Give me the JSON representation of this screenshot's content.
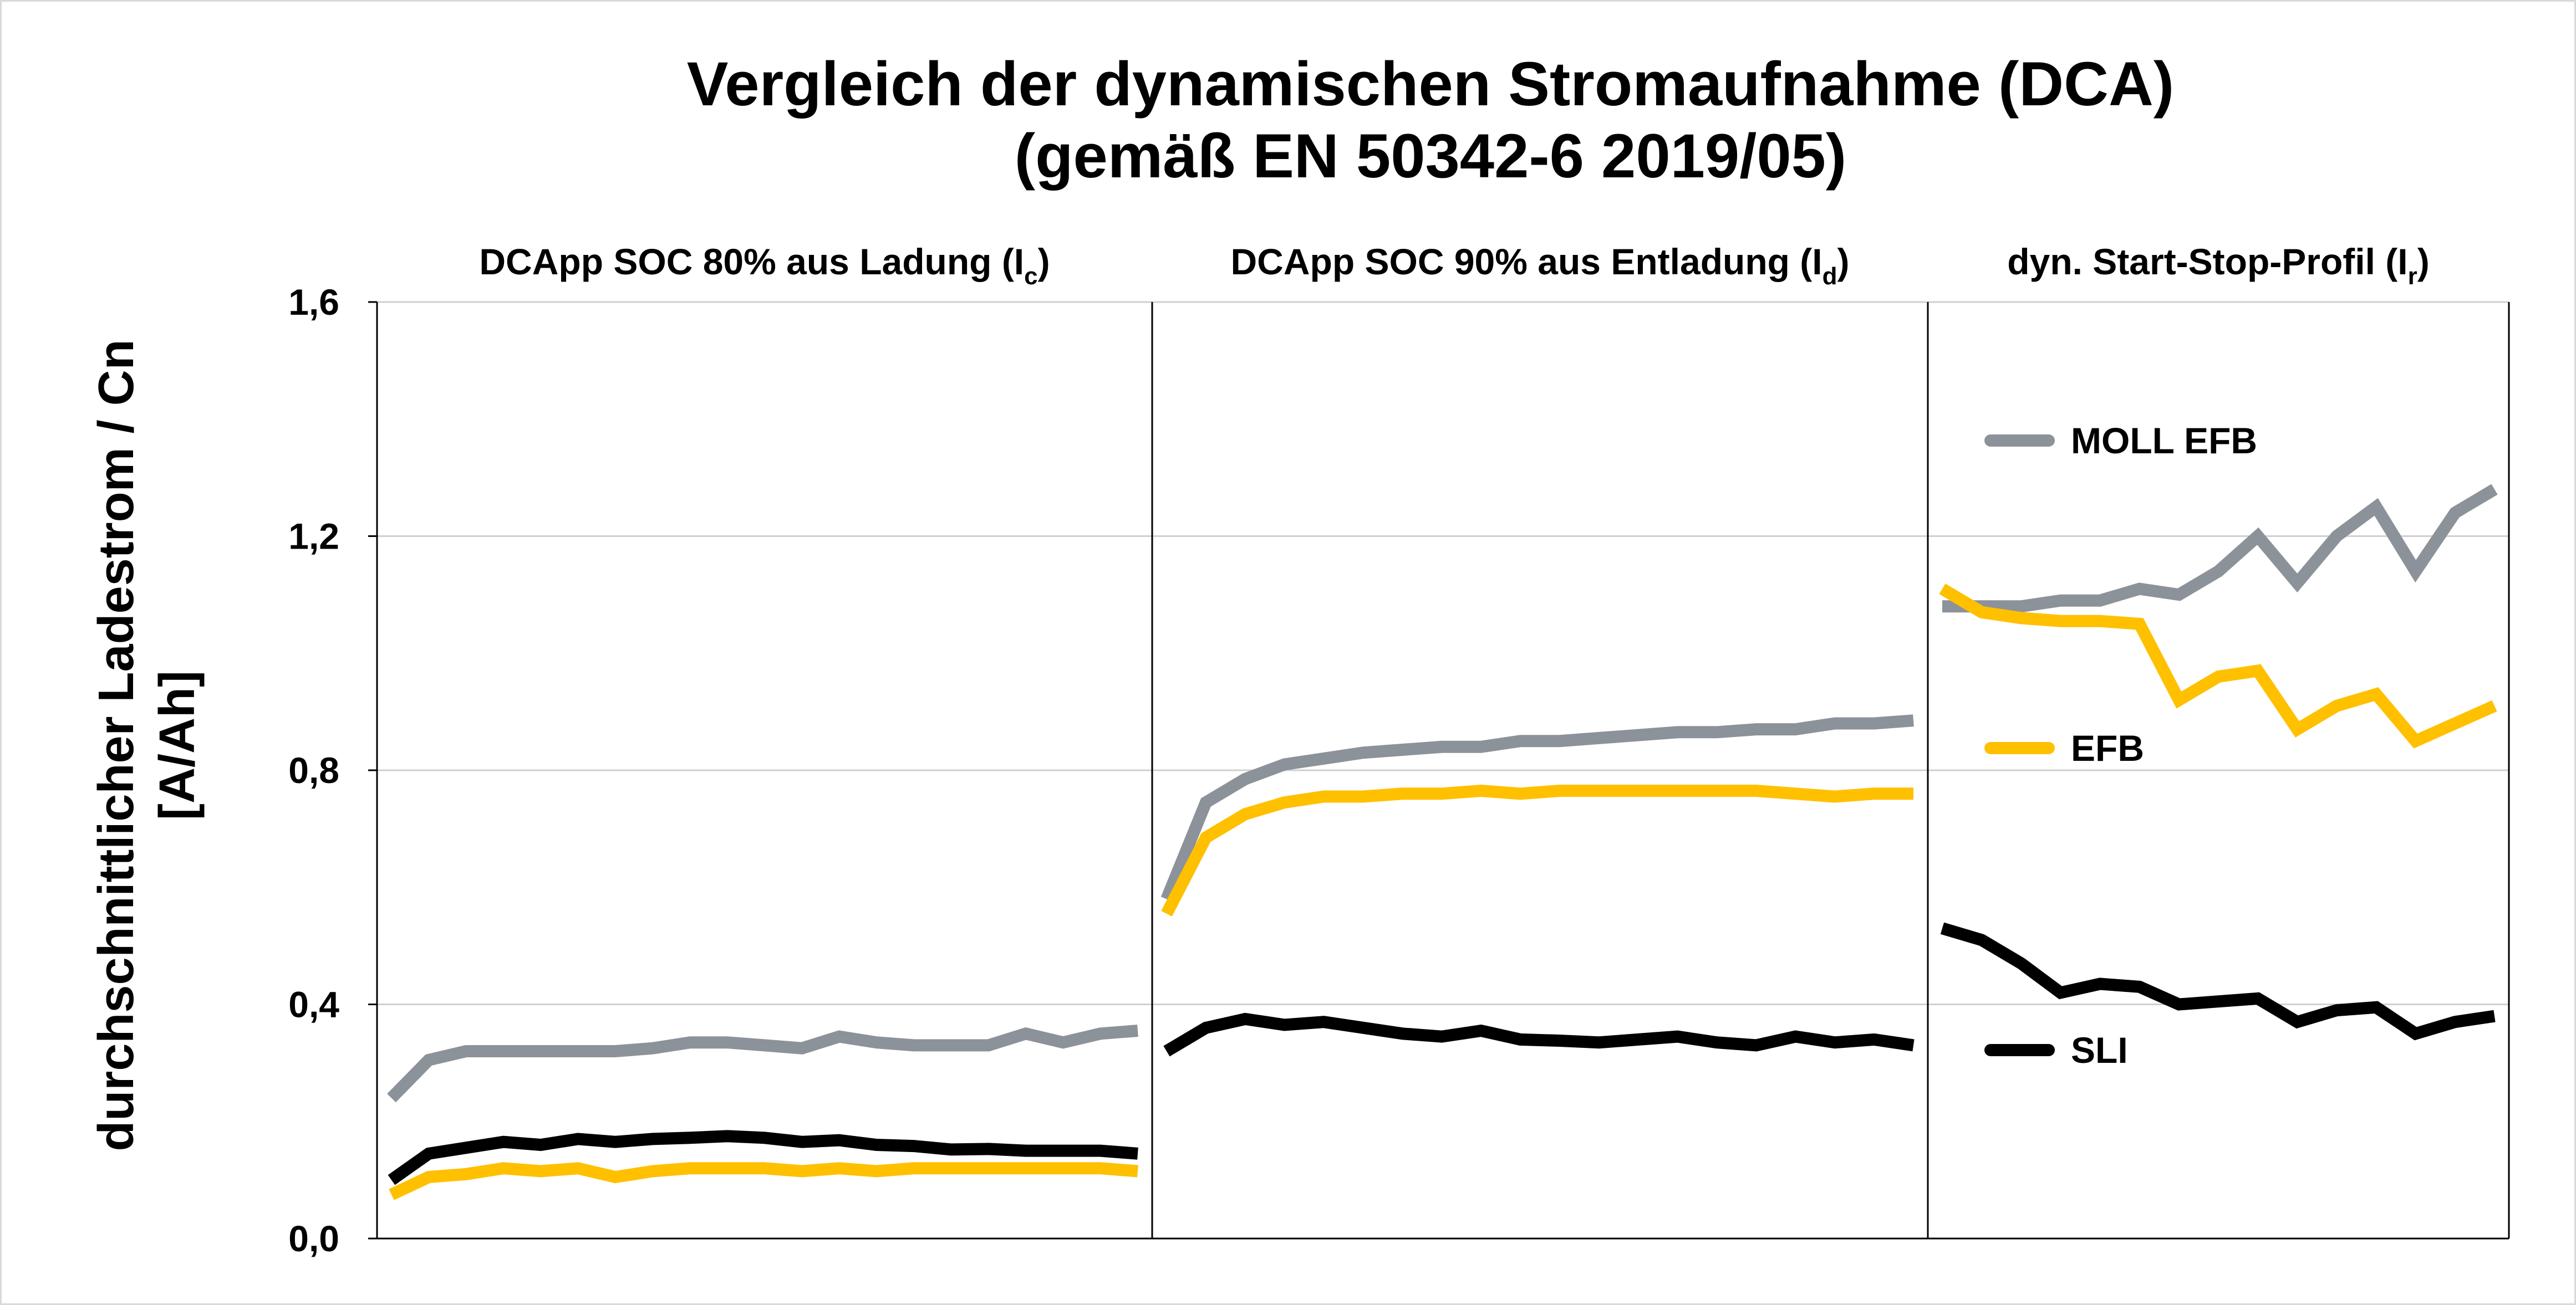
{
  "chart_data": {
    "type": "line",
    "title": [
      "Vergleich der dynamischen Stromaufnahme (DCA)",
      "(gemäß EN 50342-6 2019/05)"
    ],
    "ylabel": [
      "durchschnittlicher Ladestrom / Cn",
      "[A/Ah]"
    ],
    "ylim": [
      0,
      1.6
    ],
    "yticks": [
      "0,0",
      "0,4",
      "0,8",
      "1,2",
      "1,6"
    ],
    "ytick_values": [
      0,
      0.4,
      0.8,
      1.2,
      1.6
    ],
    "grid": true,
    "legend": [
      {
        "name": "MOLL EFB",
        "color": "#8c9299"
      },
      {
        "name": "EFB",
        "color": "#ffc000"
      },
      {
        "name": "SLI",
        "color": "#000000"
      }
    ],
    "panels": [
      {
        "title": "DCApp SOC 80% aus Ladung (I",
        "subscript": "c",
        "title_end": ")",
        "series": [
          {
            "name": "MOLL EFB",
            "values": [
              0.24,
              0.305,
              0.32,
              0.32,
              0.32,
              0.32,
              0.32,
              0.325,
              0.335,
              0.335,
              0.33,
              0.325,
              0.345,
              0.335,
              0.33,
              0.33,
              0.33,
              0.35,
              0.335,
              0.35,
              0.355
            ]
          },
          {
            "name": "EFB",
            "values": [
              0.075,
              0.105,
              0.11,
              0.12,
              0.115,
              0.12,
              0.105,
              0.115,
              0.12,
              0.12,
              0.12,
              0.115,
              0.12,
              0.115,
              0.12,
              0.12,
              0.12,
              0.12,
              0.12,
              0.12,
              0.115
            ]
          },
          {
            "name": "SLI",
            "values": [
              0.1,
              0.145,
              0.155,
              0.165,
              0.16,
              0.17,
              0.165,
              0.17,
              0.172,
              0.175,
              0.172,
              0.165,
              0.168,
              0.16,
              0.158,
              0.152,
              0.153,
              0.15,
              0.15,
              0.15,
              0.145
            ]
          }
        ]
      },
      {
        "title": "DCApp SOC 90% aus Entladung (I",
        "subscript": "d",
        "title_end": ")",
        "series": [
          {
            "name": "MOLL EFB",
            "values": [
              0.58,
              0.745,
              0.785,
              0.81,
              0.82,
              0.83,
              0.835,
              0.84,
              0.84,
              0.85,
              0.85,
              0.855,
              0.86,
              0.865,
              0.865,
              0.87,
              0.87,
              0.88,
              0.88,
              0.885
            ]
          },
          {
            "name": "EFB",
            "values": [
              0.555,
              0.685,
              0.725,
              0.745,
              0.755,
              0.755,
              0.76,
              0.76,
              0.765,
              0.76,
              0.765,
              0.765,
              0.765,
              0.765,
              0.765,
              0.765,
              0.76,
              0.755,
              0.76,
              0.76
            ]
          },
          {
            "name": "SLI",
            "values": [
              0.32,
              0.36,
              0.375,
              0.365,
              0.37,
              0.36,
              0.35,
              0.345,
              0.355,
              0.34,
              0.338,
              0.335,
              0.34,
              0.345,
              0.335,
              0.33,
              0.345,
              0.335,
              0.34,
              0.33
            ]
          }
        ]
      },
      {
        "title": "dyn. Start-Stop-Profil (I",
        "subscript": "r",
        "title_end": ")",
        "series": [
          {
            "name": "MOLL EFB",
            "values": [
              1.08,
              1.08,
              1.08,
              1.09,
              1.09,
              1.11,
              1.1,
              1.14,
              1.2,
              1.12,
              1.2,
              1.25,
              1.14,
              1.24,
              1.28
            ]
          },
          {
            "name": "EFB",
            "values": [
              1.11,
              1.07,
              1.06,
              1.055,
              1.055,
              1.05,
              0.92,
              0.96,
              0.97,
              0.87,
              0.91,
              0.93,
              0.85,
              0.88,
              0.91
            ]
          },
          {
            "name": "SLI",
            "values": [
              0.53,
              0.51,
              0.47,
              0.42,
              0.435,
              0.43,
              0.4,
              0.405,
              0.41,
              0.37,
              0.39,
              0.395,
              0.35,
              0.37,
              0.38
            ]
          }
        ]
      }
    ]
  }
}
